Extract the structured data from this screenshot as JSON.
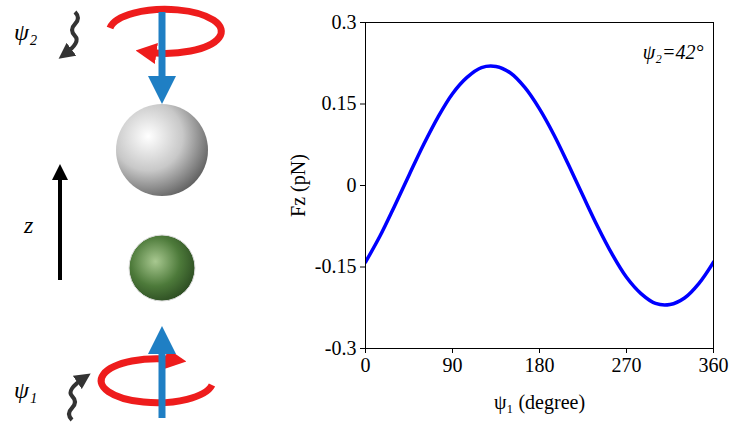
{
  "chart_data": {
    "type": "line",
    "x_label": "ψ₁ (degree)",
    "y_label": "Fz (pN)",
    "annotation": "ψ₂=42°",
    "x": [
      0,
      15,
      30,
      45,
      60,
      75,
      90,
      105,
      120,
      135,
      150,
      165,
      180,
      195,
      210,
      225,
      240,
      255,
      270,
      285,
      300,
      315,
      330,
      345,
      360
    ],
    "values": [
      -0.141,
      -0.093,
      -0.038,
      0.019,
      0.075,
      0.126,
      0.169,
      0.199,
      0.217,
      0.219,
      0.207,
      0.18,
      0.141,
      0.093,
      0.038,
      -0.019,
      -0.075,
      -0.126,
      -0.169,
      -0.199,
      -0.217,
      -0.219,
      -0.207,
      -0.18,
      -0.141
    ],
    "color": "#0000ff",
    "xlim": [
      0,
      360
    ],
    "xticks": [
      0,
      90,
      180,
      270,
      360
    ],
    "ylim": [
      -0.3,
      0.3
    ],
    "yticks": [
      -0.3,
      -0.15,
      0,
      0.15,
      0.3
    ],
    "grid": false
  },
  "diagram": {
    "top_label": "ψ₂",
    "axis_label": "z",
    "bottom_label": "ψ₁"
  }
}
